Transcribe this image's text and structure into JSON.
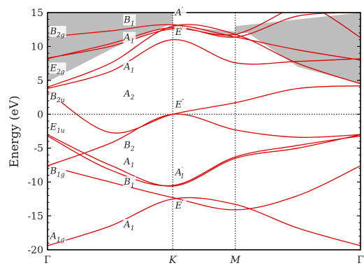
{
  "chart_data": {
    "type": "line",
    "title": "",
    "xlabel": "",
    "ylabel": "Energy (eV)",
    "ylim": [
      -20,
      15
    ],
    "yticks": [
      15,
      10,
      5,
      0,
      -5,
      -10,
      -15,
      -20
    ],
    "x_points": [
      {
        "label": "Γ",
        "x": 0
      },
      {
        "label": "K",
        "x": 1
      },
      {
        "label": "M",
        "x": 1.5
      },
      {
        "label": "Γ",
        "x": 2.5
      }
    ],
    "fermi_level": 0,
    "continuum_color": "#bdbdbd",
    "band_color": "#e00000",
    "series": [
      {
        "values": [
          [
            0,
            -19.4
          ],
          [
            0.5,
            -16.5
          ],
          [
            1,
            -12.5
          ],
          [
            1.5,
            -13.3
          ],
          [
            2.0,
            -16.8
          ],
          [
            2.5,
            -19.4
          ]
        ]
      },
      {
        "values": [
          [
            0,
            -7.6
          ],
          [
            0.5,
            -10.0
          ],
          [
            1,
            -12.3
          ],
          [
            1.5,
            -14.1
          ],
          [
            2.0,
            -12.0
          ],
          [
            2.5,
            -7.6
          ]
        ]
      },
      {
        "values": [
          [
            0,
            -3.0
          ],
          [
            0.5,
            -7.5
          ],
          [
            1,
            -10.6
          ],
          [
            1.5,
            -6.5
          ],
          [
            2.0,
            -5.0
          ],
          [
            2.5,
            -3.0
          ]
        ]
      },
      {
        "values": [
          [
            0,
            -3.2
          ],
          [
            0.5,
            -8.2
          ],
          [
            1,
            -10.5
          ],
          [
            1.5,
            -6.3
          ],
          [
            2.0,
            -4.6
          ],
          [
            2.5,
            -3.2
          ]
        ]
      },
      {
        "values": [
          [
            0,
            -7.6
          ],
          [
            0.5,
            -4.3
          ],
          [
            1,
            0
          ],
          [
            1.5,
            -2.3
          ],
          [
            2.0,
            -3.4
          ],
          [
            2.5,
            -3.0
          ]
        ]
      },
      {
        "values": [
          [
            0,
            3.4
          ],
          [
            0.5,
            -2.7
          ],
          [
            1,
            0
          ],
          [
            1.5,
            1.7
          ],
          [
            2.0,
            3.8
          ],
          [
            2.5,
            4.2
          ]
        ]
      },
      {
        "values": [
          [
            0,
            3.8
          ],
          [
            0.5,
            6.3
          ],
          [
            1,
            11.0
          ],
          [
            1.5,
            7.6
          ],
          [
            2.0,
            7.8
          ],
          [
            2.5,
            8.2
          ]
        ]
      },
      {
        "values": [
          [
            0,
            4.0
          ],
          [
            0.5,
            7.5
          ],
          [
            1,
            13.0
          ],
          [
            1.5,
            11.8
          ],
          [
            2.0,
            7.5
          ],
          [
            2.5,
            4.5
          ]
        ]
      },
      {
        "values": [
          [
            0,
            11.4
          ],
          [
            0.5,
            12.3
          ],
          [
            1,
            13.2
          ],
          [
            1.5,
            11.4
          ],
          [
            2.0,
            9.5
          ],
          [
            2.5,
            8.0
          ]
        ]
      },
      {
        "values": [
          [
            0,
            8.2
          ],
          [
            0.5,
            10.4
          ],
          [
            1,
            12.8
          ],
          [
            1.5,
            11.4
          ],
          [
            2.0,
            14.5
          ],
          [
            2.5,
            15.0
          ]
        ]
      },
      {
        "values": [
          [
            0,
            8.3
          ],
          [
            0.5,
            10.0
          ],
          [
            1,
            12.6
          ],
          [
            1.5,
            11.8
          ],
          [
            2.0,
            16.0
          ],
          [
            2.2,
            15.0
          ],
          [
            2.5,
            11.3
          ]
        ]
      }
    ],
    "continuum_edge": [
      [
        0,
        15
      ],
      [
        1,
        15
      ],
      [
        1,
        13.0
      ],
      [
        1.5,
        12.2
      ],
      [
        1.5,
        13.0
      ],
      [
        2.5,
        15
      ],
      [
        2.5,
        4.5
      ],
      [
        2.0,
        7.0
      ],
      [
        1.6,
        12.0
      ],
      [
        1.5,
        12.0
      ],
      [
        1.45,
        11.4
      ],
      [
        1,
        13.4
      ],
      [
        0.55,
        10.0
      ],
      [
        0,
        4.8
      ]
    ],
    "annotations": [
      {
        "base": "B",
        "sub": "2g",
        "x": 0.02,
        "y": 11.8
      },
      {
        "base": "E",
        "sub": "2g",
        "x": 0.02,
        "y": 6.4
      },
      {
        "base": "B",
        "sub": "2u",
        "x": 0.02,
        "y": 2.2
      },
      {
        "base": "E",
        "sub": "1u",
        "x": 0.02,
        "y": -2.3
      },
      {
        "base": "B",
        "sub": "1g",
        "x": 0.02,
        "y": -8.8
      },
      {
        "base": "A",
        "sub": "1g",
        "x": 0.02,
        "y": -18.4
      },
      {
        "base": "B",
        "sub": "1",
        "x": 0.61,
        "y": 13.5
      },
      {
        "base": "A",
        "sub": "1",
        "x": 0.61,
        "y": 10.9
      },
      {
        "base": "A",
        "sub": "1",
        "x": 0.61,
        "y": 6.6
      },
      {
        "base": "A",
        "sub": "2",
        "x": 0.61,
        "y": 2.6
      },
      {
        "base": "B",
        "sub": "2",
        "x": 0.61,
        "y": -5.0
      },
      {
        "base": "A",
        "sub": "1",
        "x": 0.61,
        "y": -7.4
      },
      {
        "base": "B",
        "sub": "1",
        "x": 0.61,
        "y": -10.4
      },
      {
        "base": "A",
        "sub": "1",
        "x": 0.61,
        "y": -16.7
      },
      {
        "base": "A",
        "sup": "′",
        "x": 1.02,
        "y": 14.6
      },
      {
        "base": "E",
        "sup": "′",
        "x": 1.02,
        "y": 11.7
      },
      {
        "base": "E",
        "sup": "″",
        "x": 1.02,
        "y": 1.0
      },
      {
        "base": "A",
        "sub": "1",
        "sup": "′",
        "x": 1.02,
        "y": -9.0
      },
      {
        "base": "E",
        "sup": "′",
        "x": 1.02,
        "y": -13.9
      }
    ]
  }
}
